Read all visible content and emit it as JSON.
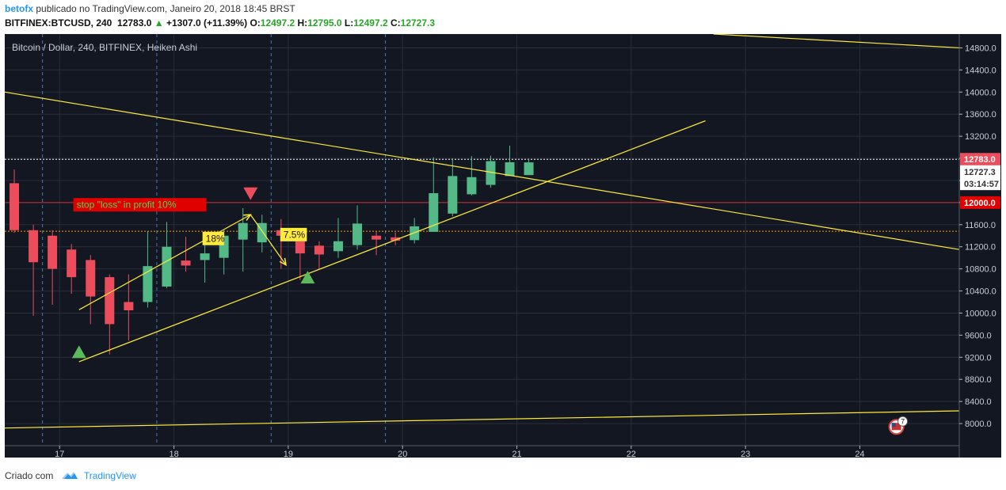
{
  "header": {
    "author": "betofx",
    "published": "publicado no TradingView.com, Janeiro 20, 2018 18:45 BRST",
    "symbol": "BITFINEX:BTCUSD, 240",
    "last_price": "12783.0",
    "change": "+1307.0 (+11.39%)",
    "o_label": "O:",
    "o_value": "12497.2",
    "h_label": "H:",
    "h_value": "12795.0",
    "l_label": "L:",
    "l_value": "12497.2",
    "c_label": "C:",
    "c_value": "12727.3"
  },
  "footer": {
    "created": "Criado com",
    "brand": "TradingView"
  },
  "colors": {
    "bull": "#53b987",
    "bear": "#eb4d5c",
    "background": "#131722",
    "trendline": "#ffeb3b",
    "accent": "#2196f3"
  },
  "chart_data": {
    "type": "candlestick",
    "title": "Bitcoin / Dollar, 240, BITFINEX, Heiken Ashi",
    "x_labels": [
      "17",
      "18",
      "19",
      "20",
      "21",
      "22",
      "23",
      "24"
    ],
    "ylim": [
      7600,
      15050
    ],
    "y_ticks": [
      8000,
      8400,
      8800,
      9200,
      9600,
      10000,
      10400,
      10800,
      11200,
      11600,
      12000,
      12400,
      12800,
      13200,
      13600,
      14000,
      14400,
      14800
    ],
    "y_tick_labels": [
      "8000.0",
      "8400.0",
      "8800.0",
      "9200.0",
      "9600.0",
      "10000.0",
      "10400.0",
      "10800.0",
      "11200.0",
      "11600.0",
      "12000.0",
      "12400.0",
      "12800.0",
      "13200.0",
      "13600.0",
      "14000.0",
      "14400.0",
      "14800.0"
    ],
    "day_start": 16.52,
    "bar_days": 0.1667,
    "candles": [
      {
        "o": 12350,
        "h": 12600,
        "l": 11450,
        "c": 11500
      },
      {
        "o": 11500,
        "h": 11600,
        "l": 9950,
        "c": 10920
      },
      {
        "o": 11400,
        "h": 11500,
        "l": 10150,
        "c": 10800
      },
      {
        "o": 11150,
        "h": 11250,
        "l": 10350,
        "c": 10650
      },
      {
        "o": 10960,
        "h": 11050,
        "l": 9800,
        "c": 10300
      },
      {
        "o": 10650,
        "h": 10700,
        "l": 9250,
        "c": 9800
      },
      {
        "o": 10200,
        "h": 10700,
        "l": 9500,
        "c": 10050
      },
      {
        "o": 10200,
        "h": 11480,
        "l": 10100,
        "c": 10850
      },
      {
        "o": 10480,
        "h": 11650,
        "l": 10450,
        "c": 11200
      },
      {
        "o": 10950,
        "h": 11380,
        "l": 10750,
        "c": 10860
      },
      {
        "o": 10960,
        "h": 11300,
        "l": 10550,
        "c": 11080
      },
      {
        "o": 11000,
        "h": 11500,
        "l": 10700,
        "c": 11400
      },
      {
        "o": 11330,
        "h": 11900,
        "l": 10750,
        "c": 11630
      },
      {
        "o": 11280,
        "h": 11780,
        "l": 11100,
        "c": 11630
      },
      {
        "o": 11500,
        "h": 11700,
        "l": 10800,
        "c": 11400
      },
      {
        "o": 11380,
        "h": 11520,
        "l": 10600,
        "c": 11080
      },
      {
        "o": 11220,
        "h": 11300,
        "l": 10800,
        "c": 11060
      },
      {
        "o": 11120,
        "h": 11720,
        "l": 11000,
        "c": 11300
      },
      {
        "o": 11230,
        "h": 11950,
        "l": 11150,
        "c": 11620
      },
      {
        "o": 11400,
        "h": 11480,
        "l": 11050,
        "c": 11330
      },
      {
        "o": 11370,
        "h": 11460,
        "l": 11230,
        "c": 11310
      },
      {
        "o": 11320,
        "h": 11720,
        "l": 11260,
        "c": 11570
      },
      {
        "o": 11470,
        "h": 12820,
        "l": 11480,
        "c": 12170
      },
      {
        "o": 11800,
        "h": 12800,
        "l": 11750,
        "c": 12480
      },
      {
        "o": 12150,
        "h": 12840,
        "l": 12130,
        "c": 12460
      },
      {
        "o": 12320,
        "h": 12850,
        "l": 12270,
        "c": 12750
      },
      {
        "o": 12480,
        "h": 13030,
        "l": 12550,
        "c": 12730
      },
      {
        "o": 12497.2,
        "h": 12795,
        "l": 12497.2,
        "c": 12727.3
      }
    ],
    "trendlines": [
      {
        "x1": 16.52,
        "y1": 14000,
        "x2": 24.87,
        "y2": 11150
      },
      {
        "x1": 17.17,
        "y1": 9120,
        "x2": 22.65,
        "y2": 13480
      },
      {
        "x1": 16.52,
        "y1": 7920,
        "x2": 24.87,
        "y2": 8230
      },
      {
        "x1": 22.72,
        "y1": 15050,
        "x2": 24.87,
        "y2": 14800
      },
      {
        "x1": 17.17,
        "y1": 10060,
        "x2": 18.67,
        "y2": 11780
      },
      {
        "x1": 18.67,
        "y1": 11780,
        "x2": 18.98,
        "y2": 10870
      }
    ],
    "marker_triangles": [
      {
        "type": "up",
        "day": 17.17,
        "price": 9300,
        "color": "#5cb85c"
      },
      {
        "type": "down",
        "day": 18.67,
        "price": 12160,
        "color": "#eb4d5c"
      },
      {
        "type": "up",
        "day": 19.17,
        "price": 10650,
        "color": "#5cb85c"
      }
    ],
    "annotations": [
      {
        "text": "18%",
        "day": 18.25,
        "price": 11350,
        "bg": "#ffeb3b",
        "fg": "#111111"
      },
      {
        "text": "7.5%",
        "day": 18.93,
        "price": 11420,
        "bg": "#ffeb3b",
        "fg": "#111111"
      },
      {
        "text": "stop \"loss\" in profit 10%",
        "day": 17.12,
        "price": 11960,
        "bg": "#e00000",
        "fg": "#52d452"
      }
    ],
    "h_lines": [
      {
        "price": 12000,
        "color": "#d32f2f",
        "style": "solid"
      },
      {
        "price": 12783,
        "color": "#ffffff",
        "style": "dotted"
      },
      {
        "price": 11480,
        "color": "#ff9800",
        "style": "dotted"
      }
    ],
    "session_breaks": [
      16.85,
      17.85,
      18.85,
      19.85
    ],
    "price_labels": [
      {
        "text": "12783.0",
        "price": 12783,
        "bg": "#eb4d5c",
        "fg": "#ffffff"
      },
      {
        "text": "12727.3",
        "price": 12560,
        "bg": "#ffffff",
        "fg": "#333333"
      },
      {
        "text": "03:14:57",
        "price": 12340,
        "bg": "#ffffff",
        "fg": "#333333"
      },
      {
        "text": "12000.0",
        "price": 12000,
        "bg": "#e00000",
        "fg": "#ffffff"
      }
    ],
    "event_badge": {
      "day": 24.32,
      "price": 7940,
      "count": "7"
    }
  }
}
